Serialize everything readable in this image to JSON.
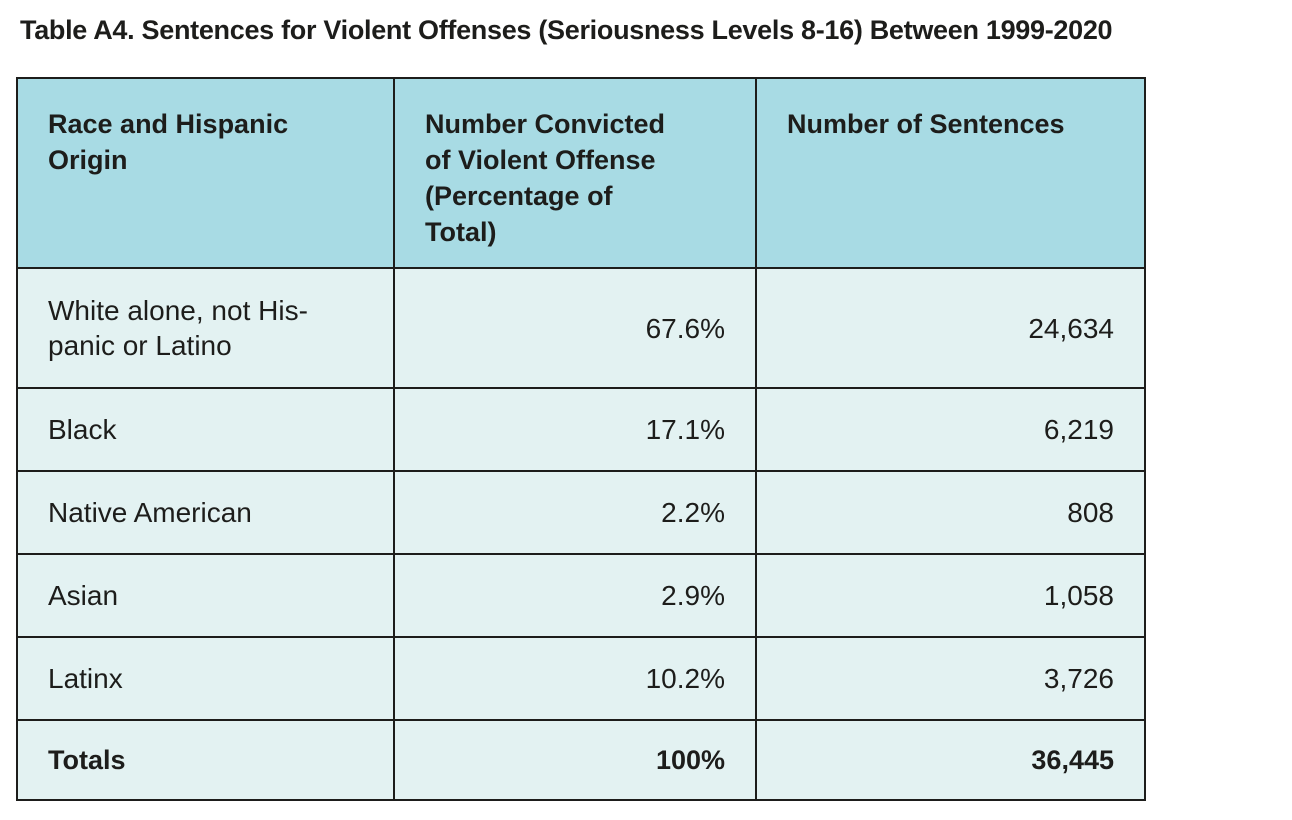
{
  "title": "Table A4. Sentences for Violent Offenses (Seriousness Levels 8-16) Between 1999-2020",
  "colors": {
    "header_background": "#a8dbe4",
    "row_background": "#e3f2f2",
    "border": "#1d1d1b",
    "text": "#1d1d1b"
  },
  "table": {
    "columns": [
      {
        "label": "Race and Hispanic\nOrigin"
      },
      {
        "label": "Number Convicted\nof Violent Offense\n(Percentage of\nTotal)"
      },
      {
        "label": "Number of Sentences"
      }
    ],
    "rows": [
      {
        "race": "White alone, not His-\npanic or Latino",
        "pct": "67.6%",
        "sentences": "24,634"
      },
      {
        "race": "Black",
        "pct": "17.1%",
        "sentences": "6,219"
      },
      {
        "race": "Native American",
        "pct": "2.2%",
        "sentences": "808"
      },
      {
        "race": "Asian",
        "pct": "2.9%",
        "sentences": "1,058"
      },
      {
        "race": "Latinx",
        "pct": "10.2%",
        "sentences": "3,726"
      }
    ],
    "totals": {
      "race": "Totals",
      "pct": "100%",
      "sentences": "36,445"
    }
  }
}
